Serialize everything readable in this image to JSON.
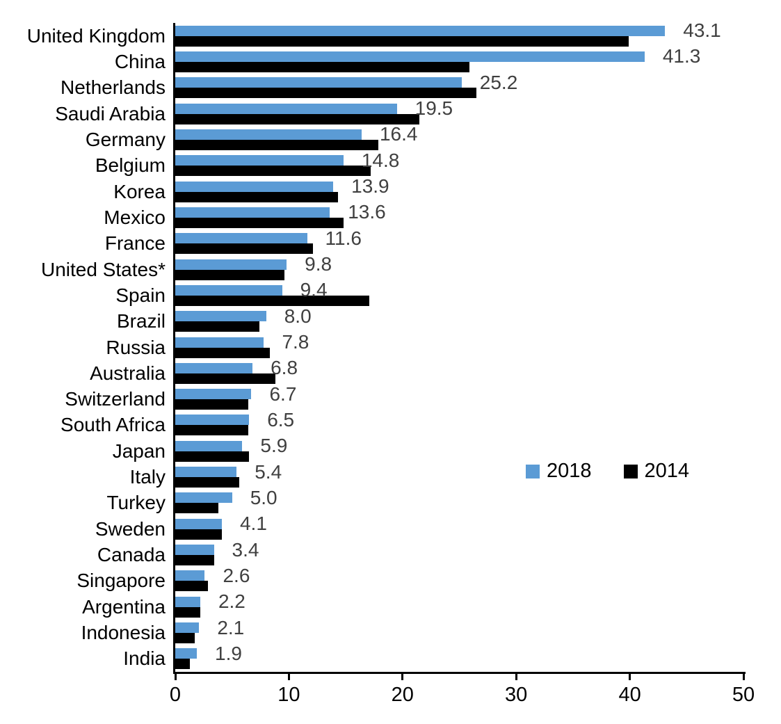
{
  "chart_data": {
    "type": "bar",
    "orientation": "horizontal",
    "title": "",
    "xlabel": "",
    "ylabel": "",
    "xlim": [
      0,
      50
    ],
    "x_ticks": [
      0,
      10,
      20,
      30,
      40,
      50
    ],
    "grid": false,
    "legend_position": "middle-right",
    "value_label_color": "#404040",
    "categories": [
      "United Kingdom",
      "China",
      "Netherlands",
      "Saudi Arabia",
      "Germany",
      "Belgium",
      "Korea",
      "Mexico",
      "France",
      "United States*",
      "Spain",
      "Brazil",
      "Russia",
      "Australia",
      "Switzerland",
      "South Africa",
      "Japan",
      "Italy",
      "Turkey",
      "Sweden",
      "Canada",
      "Singapore",
      "Argentina",
      "Indonesia",
      "India"
    ],
    "series": [
      {
        "name": "2018",
        "color": "#5B9BD5",
        "labels_shown": true,
        "values": [
          43.1,
          41.3,
          25.2,
          19.5,
          16.4,
          14.8,
          13.9,
          13.6,
          11.6,
          9.8,
          9.4,
          8.0,
          7.8,
          6.8,
          6.7,
          6.5,
          5.9,
          5.4,
          5.0,
          4.1,
          3.4,
          2.6,
          2.2,
          2.1,
          1.9
        ]
      },
      {
        "name": "2014",
        "color": "#000000",
        "labels_shown": false,
        "values": [
          39.9,
          25.9,
          26.5,
          21.5,
          17.9,
          17.2,
          14.3,
          14.8,
          12.1,
          9.6,
          17.1,
          7.4,
          8.3,
          8.8,
          6.4,
          6.4,
          6.5,
          5.6,
          3.8,
          4.1,
          3.4,
          2.9,
          2.2,
          1.7,
          1.3
        ]
      }
    ]
  },
  "legend": {
    "items": [
      {
        "label": "2018",
        "color": "#5B9BD5"
      },
      {
        "label": "2014",
        "color": "#000000"
      }
    ]
  },
  "axis": {
    "color": "#000000"
  }
}
